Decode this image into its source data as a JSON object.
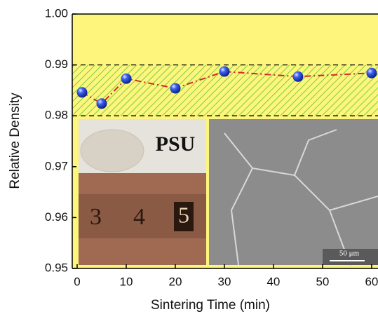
{
  "chart_data": {
    "type": "line",
    "x_label": "Sintering Time (min)",
    "y_label": "Relative Density",
    "x": [
      1,
      5,
      10,
      20,
      30,
      45,
      60
    ],
    "series": [
      {
        "name": "Relative Density",
        "color": "#d42a1e",
        "marker_color": "#1a3fd8",
        "values": [
          0.9846,
          0.9824,
          0.9873,
          0.9854,
          0.9887,
          0.9877,
          0.9884
        ]
      }
    ],
    "xlim": [
      -1,
      61.3
    ],
    "ylim": [
      0.95,
      1.0
    ],
    "xticks": [
      0,
      10,
      20,
      30,
      40,
      50,
      60
    ],
    "yticks": [
      {
        "value": 0.95,
        "label": "0.95"
      },
      {
        "value": 0.96,
        "label": "0.96"
      },
      {
        "value": 0.97,
        "label": "0.97"
      },
      {
        "value": 0.98,
        "label": "0.98"
      },
      {
        "value": 0.99,
        "label": "0.99"
      },
      {
        "value": 1.0,
        "label": "1.00"
      }
    ],
    "shaded_range": [
      0.98,
      0.99
    ],
    "background": "#fdf57c",
    "annotations": [
      "PSU",
      "50 μm"
    ]
  }
}
